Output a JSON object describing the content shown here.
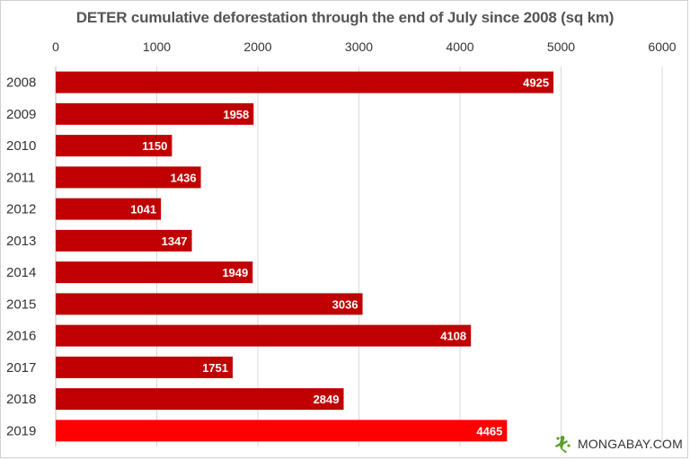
{
  "chart_data": {
    "type": "bar",
    "orientation": "horizontal",
    "title": "DETER cumulative deforestation through the end of July since 2008 (sq km)",
    "categories": [
      "2008",
      "2009",
      "2010",
      "2011",
      "2012",
      "2013",
      "2014",
      "2015",
      "2016",
      "2017",
      "2018",
      "2019"
    ],
    "values": [
      4925,
      1958,
      1150,
      1436,
      1041,
      1347,
      1949,
      3036,
      4108,
      1751,
      2849,
      4465
    ],
    "xlim": [
      0,
      6000
    ],
    "x_ticks": [
      0,
      1000,
      2000,
      3000,
      4000,
      5000,
      6000
    ],
    "x_axis_position": "top",
    "grid": true,
    "bar_color": "#c00000",
    "highlight_category": "2019",
    "highlight_color": "#ff0000"
  },
  "watermark": {
    "text": "MONGABAY.COM",
    "icon": "gecko-icon",
    "icon_color": "#5aa02c"
  }
}
